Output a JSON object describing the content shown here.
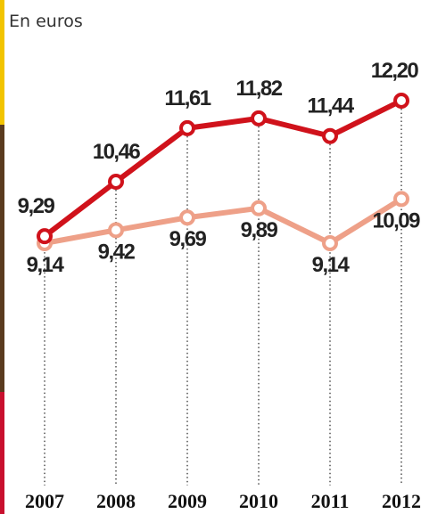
{
  "chart_data": {
    "type": "line",
    "subtitle": "En euros",
    "categories": [
      "2007",
      "2008",
      "2009",
      "2010",
      "2011",
      "2012"
    ],
    "series": [
      {
        "color": "#d0121b",
        "values": [
          9.29,
          10.46,
          11.61,
          11.82,
          11.44,
          12.2
        ],
        "value_labels": [
          "9,29",
          "10,46",
          "11,61",
          "11,82",
          "11,44",
          "12,20"
        ]
      },
      {
        "color": "#eea088",
        "values": [
          9.14,
          9.42,
          9.69,
          9.89,
          9.14,
          10.09
        ],
        "value_labels": [
          "9,14",
          "9,42",
          "9,69",
          "9,89",
          "9,14",
          "10,09"
        ]
      }
    ]
  }
}
